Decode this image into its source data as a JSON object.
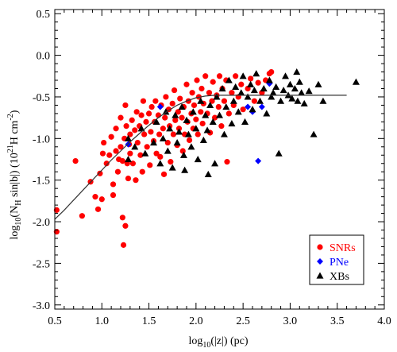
{
  "chart_data": {
    "type": "scatter",
    "xlim": [
      0.5,
      4.0
    ],
    "ylim": [
      -3.05,
      0.55
    ],
    "x_ticks": [
      0.5,
      1.0,
      1.5,
      2.0,
      2.5,
      3.0,
      3.5,
      4.0
    ],
    "y_ticks": [
      0.5,
      0.0,
      -0.5,
      -1.0,
      -1.5,
      -2.0,
      -2.5,
      -3.0
    ],
    "x_tick_labels": [
      "0.5",
      "1.0",
      "1.5",
      "2.0",
      "2.5",
      "3.0",
      "3.5",
      "4.0"
    ],
    "y_tick_labels": [
      "0.5",
      "0.0",
      "-0.5",
      "-1.0",
      "-1.5",
      "-2.0",
      "-2.5",
      "-3.0"
    ],
    "xlabel": {
      "pre": "log",
      "sub": "10",
      "post": "(|z|) (pc)"
    },
    "ylabel": {
      "p1": "log",
      "s1": "10",
      "p2": "(N",
      "s2": "H",
      "p3": " sin|b|) (10",
      "sup": "21",
      "p4": "H cm",
      "sup2": "-2",
      "p5": ")"
    },
    "legend_position": "bottom-right",
    "grid": false,
    "series": [
      {
        "name": "SNRs",
        "color": "#ff0000",
        "marker": "circle",
        "points": [
          [
            0.52,
            -1.86
          ],
          [
            0.52,
            -2.12
          ],
          [
            0.72,
            -1.27
          ],
          [
            0.79,
            -1.93
          ],
          [
            0.88,
            -1.52
          ],
          [
            0.93,
            -1.7
          ],
          [
            0.96,
            -1.85
          ],
          [
            1.0,
            -1.73
          ],
          [
            0.98,
            -1.42
          ],
          [
            1.01,
            -1.18
          ],
          [
            1.02,
            -1.05
          ],
          [
            1.05,
            -1.3
          ],
          [
            1.08,
            -1.2
          ],
          [
            1.1,
            -0.98
          ],
          [
            1.12,
            -1.55
          ],
          [
            1.12,
            -1.68
          ],
          [
            1.15,
            -1.15
          ],
          [
            1.15,
            -0.88
          ],
          [
            1.17,
            -1.4
          ],
          [
            1.18,
            -1.25
          ],
          [
            1.2,
            -0.75
          ],
          [
            1.2,
            -1.1
          ],
          [
            1.22,
            -1.95
          ],
          [
            1.22,
            -1.27
          ],
          [
            1.23,
            -2.28
          ],
          [
            1.24,
            -1.0
          ],
          [
            1.25,
            -0.6
          ],
          [
            1.25,
            -2.05
          ],
          [
            1.26,
            -0.85
          ],
          [
            1.27,
            -1.3
          ],
          [
            1.28,
            -1.48
          ],
          [
            1.29,
            -1.07
          ],
          [
            1.3,
            -0.95
          ],
          [
            1.3,
            -1.18
          ],
          [
            1.32,
            -0.78
          ],
          [
            1.33,
            -1.3
          ],
          [
            1.35,
            -0.9
          ],
          [
            1.36,
            -1.5
          ],
          [
            1.37,
            -0.68
          ],
          [
            1.38,
            -1.05
          ],
          [
            1.4,
            -0.85
          ],
          [
            1.41,
            -1.2
          ],
          [
            1.42,
            -0.72
          ],
          [
            1.43,
            -1.4
          ],
          [
            1.44,
            -0.55
          ],
          [
            1.45,
            -0.95
          ],
          [
            1.47,
            -0.8
          ],
          [
            1.48,
            -1.1
          ],
          [
            1.5,
            -0.7
          ],
          [
            1.51,
            -1.32
          ],
          [
            1.52,
            -0.92
          ],
          [
            1.53,
            -0.62
          ],
          [
            1.55,
            -1.03
          ],
          [
            1.56,
            -0.8
          ],
          [
            1.57,
            -0.55
          ],
          [
            1.58,
            -1.18
          ],
          [
            1.6,
            -0.72
          ],
          [
            1.61,
            -0.95
          ],
          [
            1.62,
            -1.22
          ],
          [
            1.63,
            -0.6
          ],
          [
            1.65,
            -0.88
          ],
          [
            1.66,
            -1.43
          ],
          [
            1.67,
            -0.75
          ],
          [
            1.68,
            -0.5
          ],
          [
            1.7,
            -1.05
          ],
          [
            1.71,
            -0.65
          ],
          [
            1.72,
            -0.85
          ],
          [
            1.73,
            -1.28
          ],
          [
            1.75,
            -0.58
          ],
          [
            1.76,
            -0.95
          ],
          [
            1.77,
            -0.42
          ],
          [
            1.78,
            -0.78
          ],
          [
            1.8,
            -1.08
          ],
          [
            1.81,
            -0.68
          ],
          [
            1.82,
            -0.88
          ],
          [
            1.83,
            -0.52
          ],
          [
            1.85,
            -0.75
          ],
          [
            1.86,
            -1.15
          ],
          [
            1.87,
            -0.62
          ],
          [
            1.88,
            -0.95
          ],
          [
            1.9,
            -0.35
          ],
          [
            1.91,
            -0.8
          ],
          [
            1.92,
            -0.55
          ],
          [
            1.93,
            -1.02
          ],
          [
            1.95,
            -0.7
          ],
          [
            1.96,
            -0.45
          ],
          [
            1.97,
            -0.88
          ],
          [
            1.98,
            -0.6
          ],
          [
            2.0,
            -0.77
          ],
          [
            2.01,
            -0.3
          ],
          [
            2.02,
            -0.95
          ],
          [
            2.03,
            -0.5
          ],
          [
            2.05,
            -0.68
          ],
          [
            2.06,
            -0.4
          ],
          [
            2.07,
            -0.82
          ],
          [
            2.08,
            -0.58
          ],
          [
            2.1,
            -0.25
          ],
          [
            2.12,
            -0.7
          ],
          [
            2.14,
            -0.45
          ],
          [
            2.15,
            -0.93
          ],
          [
            2.17,
            -0.55
          ],
          [
            2.18,
            -0.32
          ],
          [
            2.2,
            -0.75
          ],
          [
            2.22,
            -0.48
          ],
          [
            2.24,
            -0.62
          ],
          [
            2.25,
            -0.25
          ],
          [
            2.27,
            -0.85
          ],
          [
            2.28,
            -0.4
          ],
          [
            2.3,
            -0.55
          ],
          [
            2.32,
            -0.3
          ],
          [
            2.33,
            -1.28
          ],
          [
            2.35,
            -0.7
          ],
          [
            2.38,
            -0.45
          ],
          [
            2.4,
            -0.6
          ],
          [
            2.42,
            -0.25
          ],
          [
            2.45,
            -0.5
          ],
          [
            2.48,
            -0.35
          ],
          [
            2.5,
            -0.65
          ],
          [
            2.55,
            -0.4
          ],
          [
            2.58,
            -0.28
          ],
          [
            2.62,
            -0.55
          ],
          [
            2.66,
            -0.33
          ],
          [
            2.7,
            -0.45
          ],
          [
            2.78,
            -0.22
          ],
          [
            2.8,
            -0.2
          ],
          [
            2.74,
            -0.3
          ]
        ]
      },
      {
        "name": "PNe",
        "color": "#0000ff",
        "marker": "diamond",
        "points": [
          [
            1.28,
            -1.07
          ],
          [
            1.62,
            -0.62
          ],
          [
            2.55,
            -0.62
          ],
          [
            2.6,
            -0.68
          ],
          [
            2.66,
            -1.27
          ],
          [
            2.7,
            -0.62
          ],
          [
            2.78,
            -0.34
          ]
        ]
      },
      {
        "name": "XBs",
        "color": "#000000",
        "marker": "triangle",
        "points": [
          [
            1.28,
            -1.0
          ],
          [
            1.28,
            -1.25
          ],
          [
            1.35,
            -1.1
          ],
          [
            1.42,
            -0.88
          ],
          [
            1.46,
            -1.18
          ],
          [
            1.55,
            -1.05
          ],
          [
            1.58,
            -0.8
          ],
          [
            1.62,
            -1.3
          ],
          [
            1.65,
            -1.0
          ],
          [
            1.68,
            -0.68
          ],
          [
            1.7,
            -1.15
          ],
          [
            1.72,
            -0.88
          ],
          [
            1.75,
            -1.35
          ],
          [
            1.78,
            -0.72
          ],
          [
            1.8,
            -1.05
          ],
          [
            1.82,
            -0.92
          ],
          [
            1.85,
            -0.62
          ],
          [
            1.87,
            -1.2
          ],
          [
            1.88,
            -1.38
          ],
          [
            1.9,
            -0.78
          ],
          [
            1.92,
            -0.95
          ],
          [
            1.95,
            -1.1
          ],
          [
            1.97,
            -0.68
          ],
          [
            2.0,
            -0.88
          ],
          [
            2.02,
            -1.25
          ],
          [
            2.05,
            -0.55
          ],
          [
            2.08,
            -1.02
          ],
          [
            2.1,
            -0.72
          ],
          [
            2.12,
            -0.9
          ],
          [
            2.13,
            -1.43
          ],
          [
            2.15,
            -0.6
          ],
          [
            2.18,
            -0.8
          ],
          [
            2.2,
            -1.3
          ],
          [
            2.22,
            -0.5
          ],
          [
            2.25,
            -0.72
          ],
          [
            2.28,
            -0.4
          ],
          [
            2.3,
            -0.95
          ],
          [
            2.32,
            -0.62
          ],
          [
            2.35,
            -0.3
          ],
          [
            2.38,
            -0.82
          ],
          [
            2.4,
            -0.55
          ],
          [
            2.42,
            -0.38
          ],
          [
            2.45,
            -0.68
          ],
          [
            2.48,
            -0.45
          ],
          [
            2.5,
            -0.25
          ],
          [
            2.52,
            -0.8
          ],
          [
            2.55,
            -0.5
          ],
          [
            2.58,
            -0.35
          ],
          [
            2.6,
            -0.65
          ],
          [
            2.62,
            -0.42
          ],
          [
            2.64,
            -0.22
          ],
          [
            2.68,
            -0.55
          ],
          [
            2.72,
            -0.4
          ],
          [
            2.75,
            -0.7
          ],
          [
            2.78,
            -0.3
          ],
          [
            2.8,
            -0.5
          ],
          [
            2.82,
            -0.45
          ],
          [
            2.85,
            -0.38
          ],
          [
            2.88,
            -1.18
          ],
          [
            2.9,
            -0.55
          ],
          [
            2.93,
            -0.42
          ],
          [
            2.95,
            -0.25
          ],
          [
            2.98,
            -0.48
          ],
          [
            3.0,
            -0.35
          ],
          [
            3.02,
            -0.52
          ],
          [
            3.05,
            -0.4
          ],
          [
            3.07,
            -0.2
          ],
          [
            3.08,
            -0.55
          ],
          [
            3.1,
            -0.32
          ],
          [
            3.12,
            -0.45
          ],
          [
            3.15,
            -0.58
          ],
          [
            3.2,
            -0.43
          ],
          [
            3.25,
            -0.95
          ],
          [
            3.3,
            -0.35
          ],
          [
            3.35,
            -0.55
          ],
          [
            3.7,
            -0.32
          ]
        ]
      }
    ],
    "curve": {
      "color": "#333333",
      "points": [
        [
          0.5,
          -1.97
        ],
        [
          0.6,
          -1.86
        ],
        [
          0.7,
          -1.74
        ],
        [
          0.8,
          -1.62
        ],
        [
          0.9,
          -1.5
        ],
        [
          1.0,
          -1.38
        ],
        [
          1.1,
          -1.26
        ],
        [
          1.2,
          -1.15
        ],
        [
          1.3,
          -1.04
        ],
        [
          1.4,
          -0.94
        ],
        [
          1.5,
          -0.84
        ],
        [
          1.6,
          -0.75
        ],
        [
          1.7,
          -0.67
        ],
        [
          1.8,
          -0.6
        ],
        [
          1.9,
          -0.55
        ],
        [
          2.0,
          -0.51
        ],
        [
          2.1,
          -0.49
        ],
        [
          2.2,
          -0.48
        ],
        [
          2.4,
          -0.48
        ],
        [
          2.6,
          -0.48
        ],
        [
          3.0,
          -0.48
        ],
        [
          3.6,
          -0.48
        ]
      ]
    }
  }
}
